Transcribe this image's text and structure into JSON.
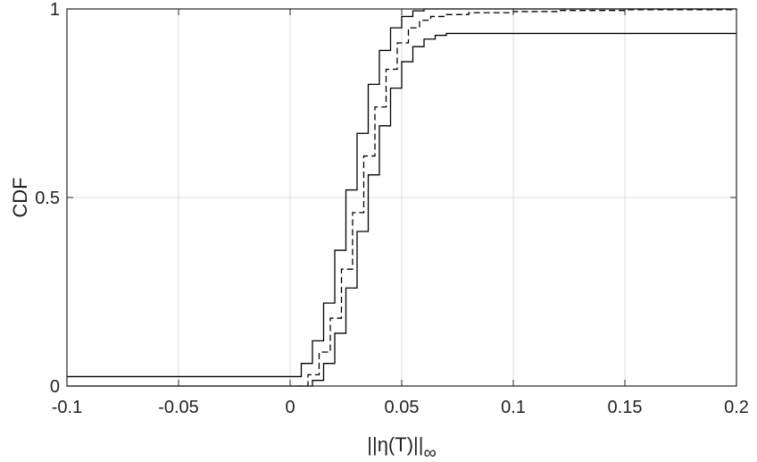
{
  "chart_data": {
    "type": "line",
    "title": "",
    "xlabel": "||η(T)||",
    "xlabel_subscript": "∞",
    "ylabel": "CDF",
    "xlim": [
      -0.1,
      0.2
    ],
    "ylim": [
      0,
      1
    ],
    "xticks": [
      -0.1,
      -0.05,
      0,
      0.05,
      0.1,
      0.15,
      0.2
    ],
    "xtick_labels": [
      "-0.1",
      "-0.05",
      "0",
      "0.05",
      "0.1",
      "0.15",
      "0.2"
    ],
    "yticks": [
      0,
      0.5,
      1
    ],
    "ytick_labels": [
      "0",
      "0.5",
      "1"
    ],
    "grid": true,
    "legend": "none",
    "colors": {
      "lines": "#000000",
      "grid": "#dcdcdc",
      "axis": "#262626"
    },
    "series": [
      {
        "style": "solid",
        "x": [
          -0.1,
          0.0,
          0.005,
          0.01,
          0.015,
          0.02,
          0.025,
          0.03,
          0.035,
          0.04,
          0.045,
          0.05,
          0.055,
          0.06,
          0.065,
          0.07,
          0.2
        ],
        "y": [
          0.025,
          0.025,
          0.06,
          0.12,
          0.22,
          0.36,
          0.52,
          0.67,
          0.8,
          0.89,
          0.95,
          0.98,
          0.995,
          1.0,
          1.0,
          1.0,
          1.0
        ]
      },
      {
        "style": "dashed",
        "x": [
          0.003,
          0.008,
          0.013,
          0.018,
          0.023,
          0.028,
          0.033,
          0.038,
          0.043,
          0.048,
          0.053,
          0.058,
          0.063,
          0.07,
          0.08,
          0.1,
          0.12,
          0.15,
          0.2
        ],
        "y": [
          0.0,
          0.03,
          0.09,
          0.18,
          0.31,
          0.46,
          0.61,
          0.74,
          0.84,
          0.91,
          0.95,
          0.97,
          0.98,
          0.985,
          0.99,
          0.993,
          0.996,
          0.998,
          1.0
        ]
      },
      {
        "style": "solid",
        "x": [
          -0.1,
          0.005,
          0.01,
          0.015,
          0.02,
          0.025,
          0.03,
          0.035,
          0.04,
          0.045,
          0.05,
          0.055,
          0.06,
          0.065,
          0.07,
          0.075,
          0.2
        ],
        "y": [
          0.0,
          0.0,
          0.015,
          0.06,
          0.14,
          0.26,
          0.41,
          0.56,
          0.69,
          0.79,
          0.86,
          0.9,
          0.92,
          0.93,
          0.935,
          0.935,
          0.935
        ]
      }
    ]
  }
}
